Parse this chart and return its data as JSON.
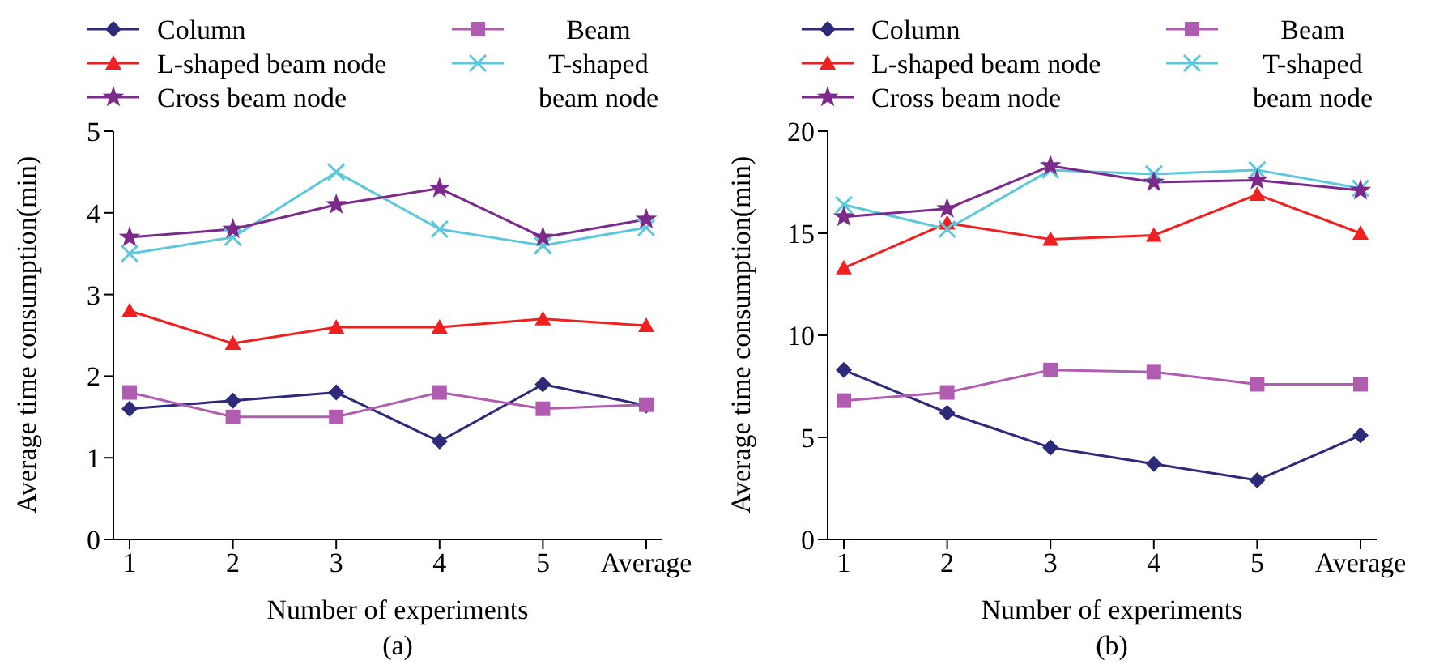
{
  "chart_data": [
    {
      "type": "line",
      "xlabel": "Number of experiments",
      "ylabel": "Average time consumption(min)",
      "categories": [
        "1",
        "2",
        "3",
        "4",
        "5",
        "Average"
      ],
      "ylim": [
        0,
        5
      ],
      "yticks": [
        0,
        1,
        2,
        3,
        4,
        5
      ],
      "legend": "top",
      "grid": false,
      "line_style": "solid",
      "annotations": [
        "(a)"
      ],
      "series": [
        {
          "name": "Column",
          "color": "#2e2a7a",
          "marker": "diamond",
          "values": [
            1.6,
            1.7,
            1.8,
            1.2,
            1.9,
            1.64
          ]
        },
        {
          "name": "Beam",
          "color": "#b05cb0",
          "marker": "square",
          "values": [
            1.8,
            1.5,
            1.5,
            1.8,
            1.6,
            1.65
          ]
        },
        {
          "name": "L-shaped beam node",
          "color": "#f02020",
          "marker": "triangle",
          "values": [
            2.8,
            2.4,
            2.6,
            2.6,
            2.7,
            2.62
          ]
        },
        {
          "name": "T-shaped beam node",
          "color": "#5bc8dc",
          "marker": "cross",
          "values": [
            3.5,
            3.7,
            4.5,
            3.8,
            3.6,
            3.82
          ]
        },
        {
          "name": "Cross beam node",
          "color": "#7b2a8c",
          "marker": "star",
          "values": [
            3.7,
            3.8,
            4.1,
            4.3,
            3.7,
            3.92
          ]
        }
      ]
    },
    {
      "type": "line",
      "xlabel": "Number of experiments",
      "ylabel": "Average time consumption(min)",
      "categories": [
        "1",
        "2",
        "3",
        "4",
        "5",
        "Average"
      ],
      "ylim": [
        0,
        20
      ],
      "yticks": [
        0,
        5,
        10,
        15,
        20
      ],
      "legend": "top",
      "grid": false,
      "line_style": "solid",
      "annotations": [
        "(b)"
      ],
      "series": [
        {
          "name": "Column",
          "color": "#2e2a7a",
          "marker": "diamond",
          "values": [
            8.3,
            6.2,
            4.5,
            3.7,
            2.9,
            5.1
          ]
        },
        {
          "name": "Beam",
          "color": "#b05cb0",
          "marker": "square",
          "values": [
            6.8,
            7.2,
            8.3,
            8.2,
            7.6,
            7.6
          ]
        },
        {
          "name": "L-shaped beam node",
          "color": "#f02020",
          "marker": "triangle",
          "values": [
            13.3,
            15.5,
            14.7,
            14.9,
            16.9,
            15.0
          ]
        },
        {
          "name": "T-shaped beam node",
          "color": "#5bc8dc",
          "marker": "cross",
          "values": [
            16.4,
            15.2,
            18.1,
            17.9,
            18.1,
            17.2
          ]
        },
        {
          "name": "Cross beam node",
          "color": "#7b2a8c",
          "marker": "star",
          "values": [
            15.8,
            16.2,
            18.3,
            17.5,
            17.6,
            17.1
          ]
        }
      ]
    }
  ]
}
